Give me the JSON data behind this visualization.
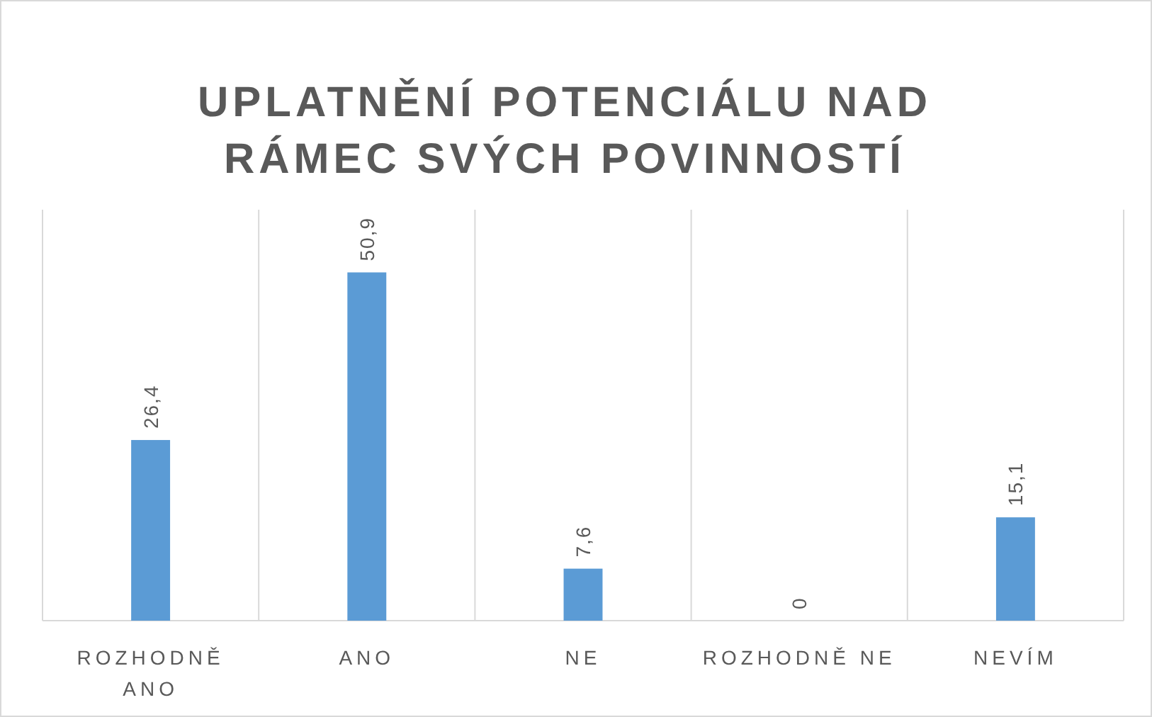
{
  "chart_data": {
    "type": "bar",
    "title": "UPLATNĚNÍ POTENCIÁLU NAD RÁMEC SVÝCH POVINNOSTÍ",
    "categories": [
      "ROZHODNĚ ANO",
      "ANO",
      "NE",
      "ROZHODNĚ NE",
      "NEVÍM"
    ],
    "values": [
      26.4,
      50.9,
      7.6,
      0,
      15.1
    ],
    "value_labels": [
      "26,4",
      "50,9",
      "7,6",
      "0",
      "15,1"
    ],
    "color": "#5b9bd5",
    "grid": "x"
  }
}
